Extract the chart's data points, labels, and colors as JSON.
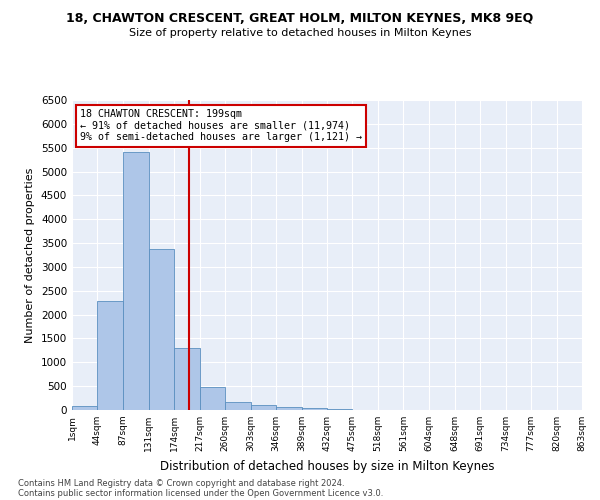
{
  "title1": "18, CHAWTON CRESCENT, GREAT HOLM, MILTON KEYNES, MK8 9EQ",
  "title2": "Size of property relative to detached houses in Milton Keynes",
  "xlabel": "Distribution of detached houses by size in Milton Keynes",
  "ylabel": "Number of detached properties",
  "footnote1": "Contains HM Land Registry data © Crown copyright and database right 2024.",
  "footnote2": "Contains public sector information licensed under the Open Government Licence v3.0.",
  "annotation_line1": "18 CHAWTON CRESCENT: 199sqm",
  "annotation_line2": "← 91% of detached houses are smaller (11,974)",
  "annotation_line3": "9% of semi-detached houses are larger (1,121) →",
  "property_size": 199,
  "bar_color": "#aec6e8",
  "bar_edge_color": "#5a8fc0",
  "vline_color": "#cc0000",
  "annotation_box_color": "#cc0000",
  "background_color": "#e8eef8",
  "ylim": [
    0,
    6500
  ],
  "bin_edges": [
    1,
    44,
    87,
    131,
    174,
    217,
    260,
    303,
    346,
    389,
    432,
    475,
    518,
    561,
    604,
    648,
    691,
    734,
    777,
    820,
    863
  ],
  "bin_labels": [
    "1sqm",
    "44sqm",
    "87sqm",
    "131sqm",
    "174sqm",
    "217sqm",
    "260sqm",
    "303sqm",
    "346sqm",
    "389sqm",
    "432sqm",
    "475sqm",
    "518sqm",
    "561sqm",
    "604sqm",
    "648sqm",
    "691sqm",
    "734sqm",
    "777sqm",
    "820sqm",
    "863sqm"
  ],
  "bar_heights": [
    75,
    2280,
    5420,
    3380,
    1290,
    480,
    165,
    105,
    70,
    35,
    15,
    10,
    5,
    0,
    0,
    0,
    0,
    0,
    0,
    0
  ]
}
